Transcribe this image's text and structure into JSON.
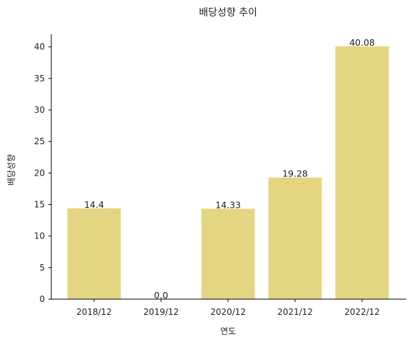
{
  "chart_data": {
    "type": "bar",
    "title": "배당성향 추이",
    "xlabel": "연도",
    "ylabel": "배당성향",
    "categories": [
      "2018/12",
      "2019/12",
      "2020/12",
      "2021/12",
      "2022/12"
    ],
    "values": [
      14.4,
      0.0,
      14.33,
      19.28,
      40.08
    ],
    "data_labels": [
      "14.4",
      "0.0",
      "14.33",
      "19.28",
      "40.08"
    ],
    "yticks": [
      0,
      5,
      10,
      15,
      20,
      25,
      30,
      35,
      40
    ],
    "ylim": [
      0,
      42
    ],
    "grid": false,
    "bar_color": "#e3d582"
  }
}
